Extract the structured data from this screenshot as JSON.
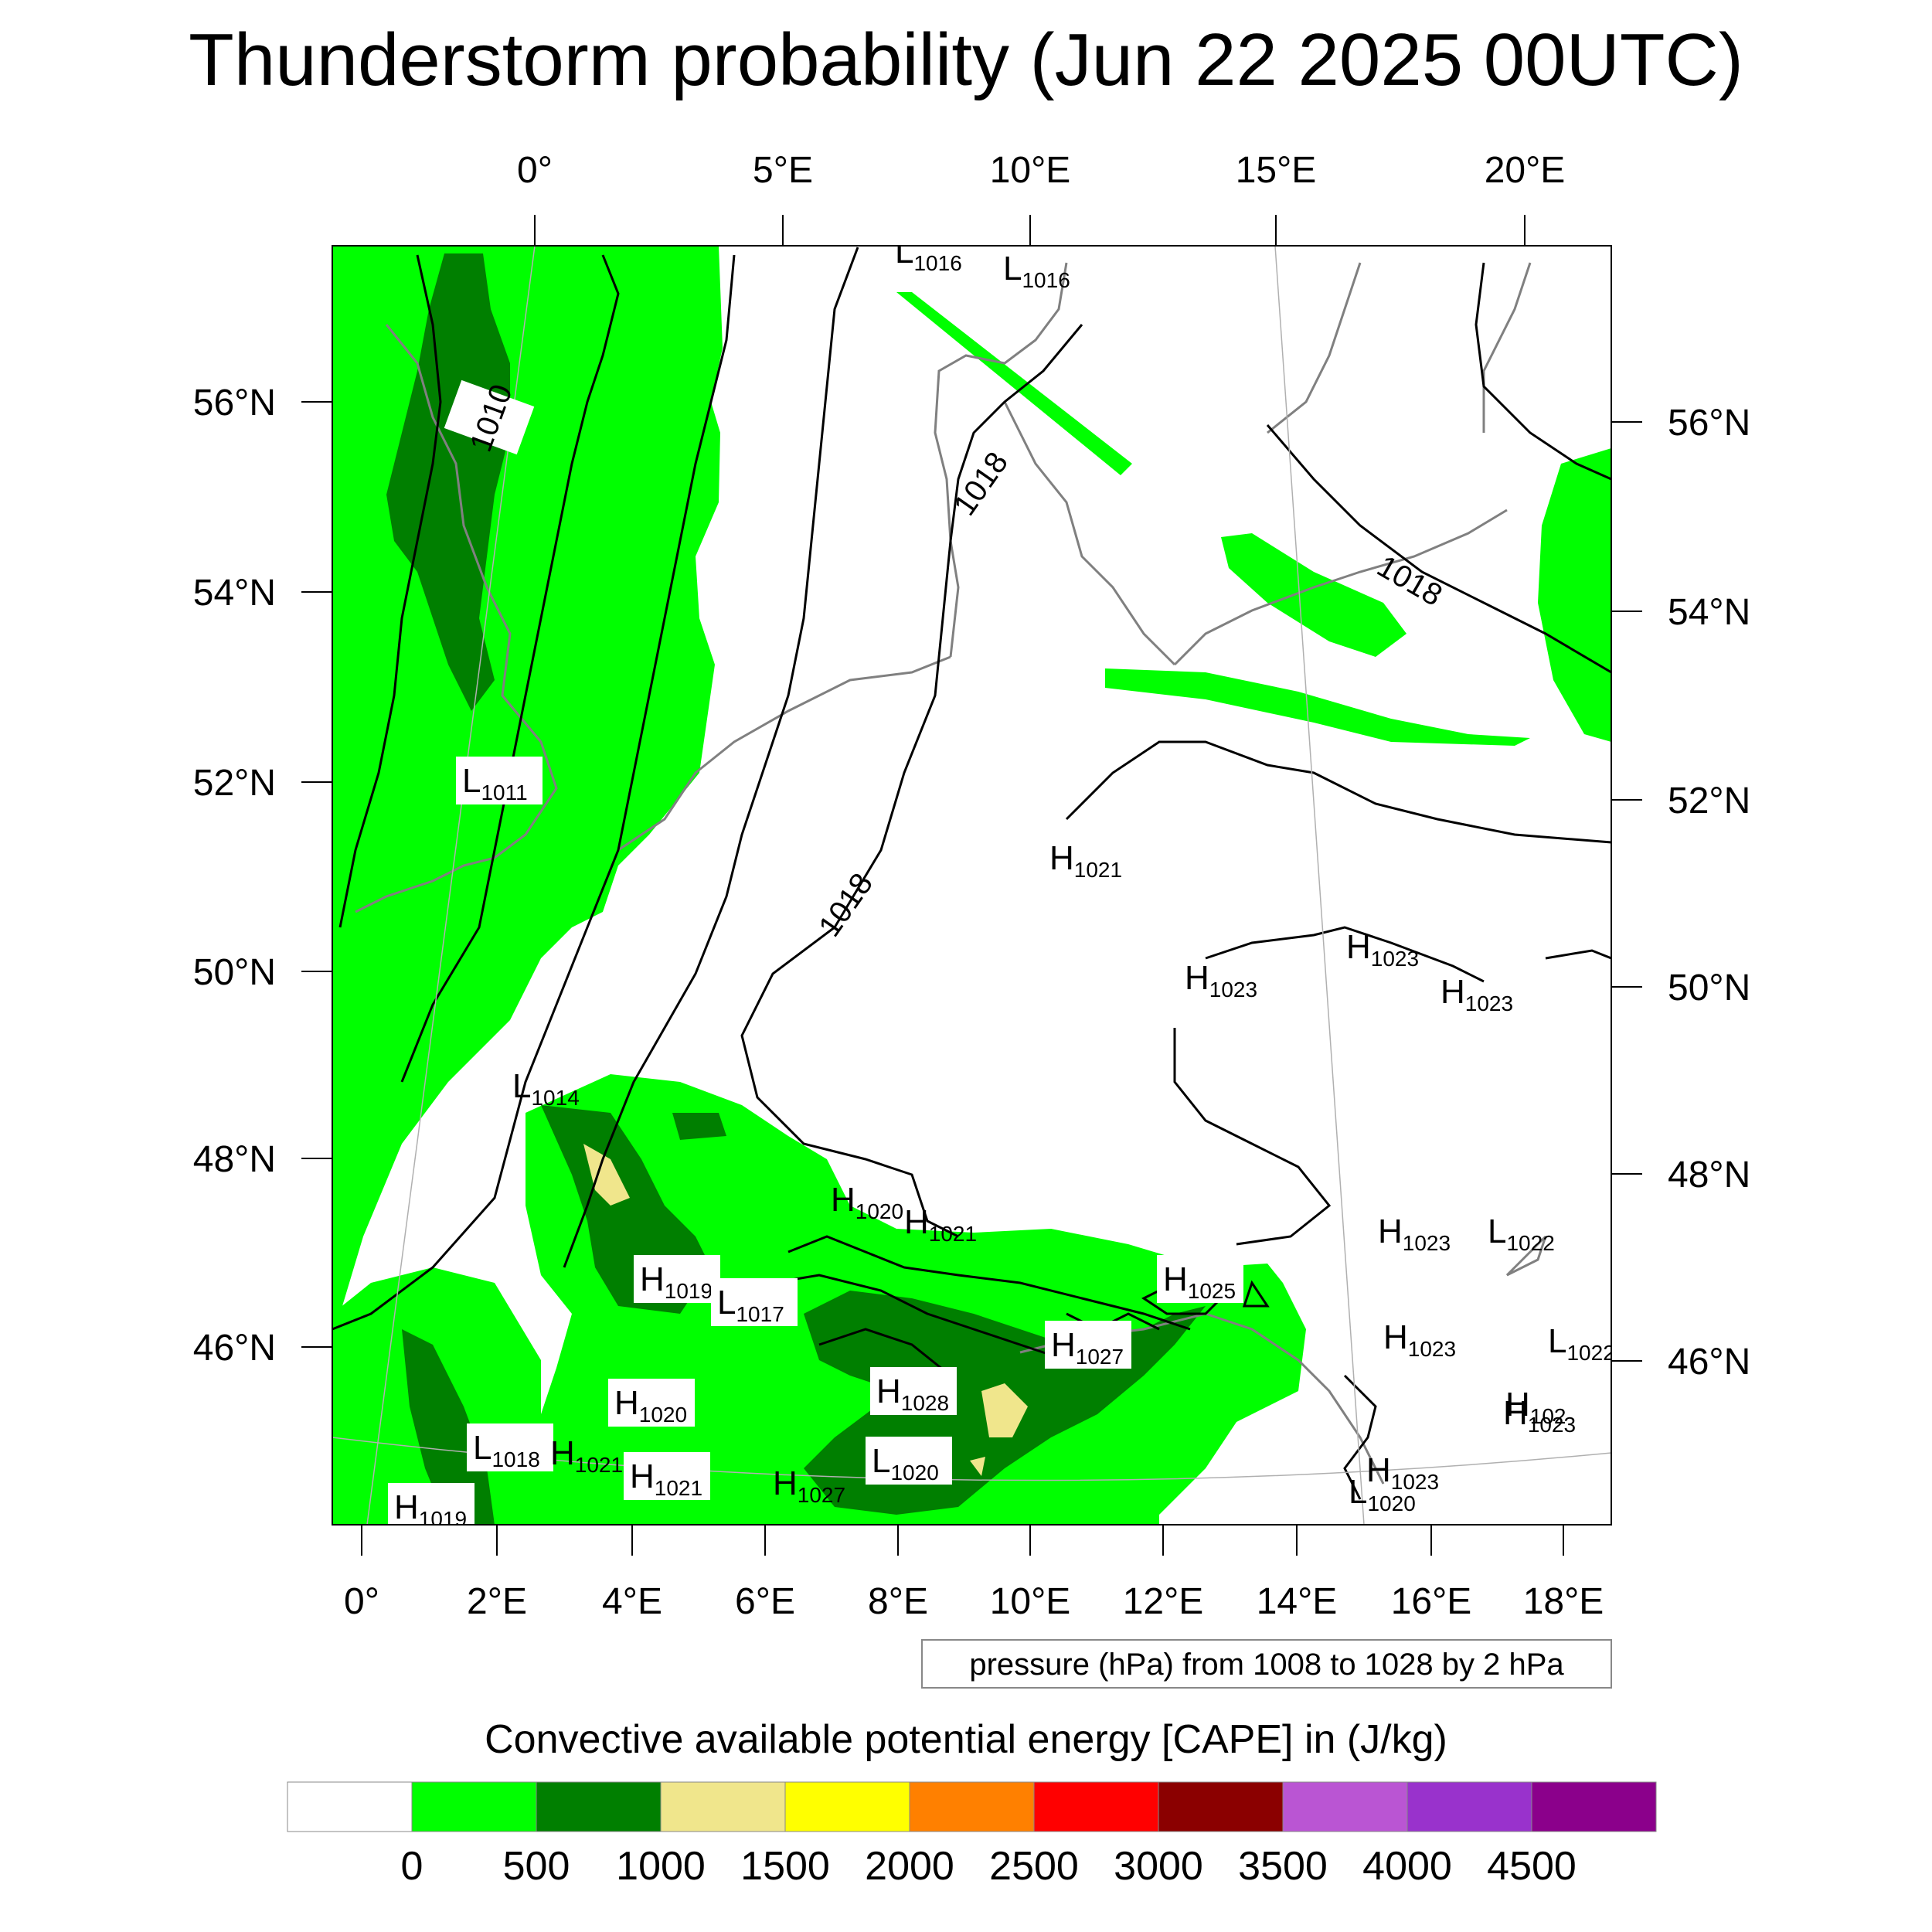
{
  "title": "Thunderstorm probability (Jun 22 2025 00UTC)",
  "top_lon_labels": [
    "0°",
    "5°E",
    "10°E",
    "15°E",
    "20°E"
  ],
  "bottom_lon_labels": [
    "0°",
    "2°E",
    "4°E",
    "6°E",
    "8°E",
    "10°E",
    "12°E",
    "14°E",
    "16°E",
    "18°E"
  ],
  "left_lat_labels": [
    "56°N",
    "54°N",
    "52°N",
    "50°N",
    "48°N",
    "46°N"
  ],
  "right_lat_labels": [
    "56°N",
    "54°N",
    "52°N",
    "50°N",
    "48°N",
    "46°N"
  ],
  "contour_note": "pressure (hPa) from 1008 to 1028 by 2 hPa",
  "colorbar": {
    "title": "Convective available potential energy [CAPE] in (J/kg)",
    "ticks": [
      "0",
      "500",
      "1000",
      "1500",
      "2000",
      "2500",
      "3000",
      "3500",
      "4000",
      "4500"
    ],
    "colors": [
      "#ffffff",
      "#00ff00",
      "#007f00",
      "#f0e68c",
      "#ffff00",
      "#ff8000",
      "#ff0000",
      "#8b0000",
      "#ba55d3",
      "#9932cc",
      "#8b008b"
    ]
  },
  "contour_labels": [
    "1010",
    "1018",
    "1018",
    "1018"
  ],
  "pressure_centers": [
    {
      "t": "L",
      "n": "1016"
    },
    {
      "t": "L",
      "n": "1016"
    },
    {
      "t": "L",
      "n": "1011"
    },
    {
      "t": "L",
      "n": "1014"
    },
    {
      "t": "H",
      "n": "1021"
    },
    {
      "t": "H",
      "n": "1023"
    },
    {
      "t": "H",
      "n": "1023"
    },
    {
      "t": "H",
      "n": "1023"
    },
    {
      "t": "H",
      "n": "1020"
    },
    {
      "t": "H",
      "n": "1021"
    },
    {
      "t": "H",
      "n": "1019"
    },
    {
      "t": "L",
      "n": "1017"
    },
    {
      "t": "H",
      "n": "1025"
    },
    {
      "t": "H",
      "n": "1027"
    },
    {
      "t": "H",
      "n": "1023"
    },
    {
      "t": "L",
      "n": "1022"
    },
    {
      "t": "H",
      "n": "1023"
    },
    {
      "t": "L",
      "n": "1022"
    },
    {
      "t": "H",
      "n": "102"
    },
    {
      "t": "H",
      "n": "1020"
    },
    {
      "t": "H",
      "n": "1028"
    },
    {
      "t": "L",
      "n": "1018"
    },
    {
      "t": "H",
      "n": "1021"
    },
    {
      "t": "H",
      "n": "1021"
    },
    {
      "t": "L",
      "n": "1020"
    },
    {
      "t": "H",
      "n": "1027"
    },
    {
      "t": "H",
      "n": "1023"
    },
    {
      "t": "H",
      "n": "1023"
    },
    {
      "t": "L",
      "n": "1020"
    },
    {
      "t": "H",
      "n": "1019"
    }
  ]
}
